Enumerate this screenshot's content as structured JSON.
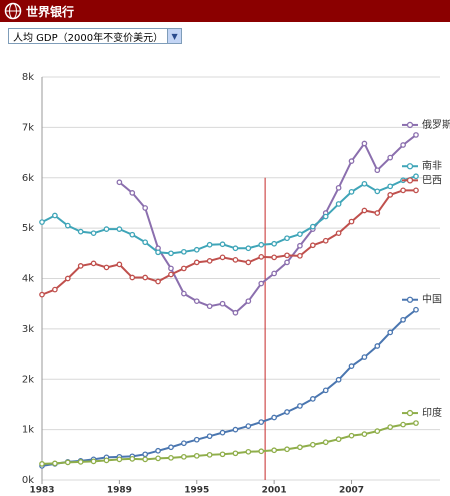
{
  "header": {
    "title": "世界银行"
  },
  "selector": {
    "label": "人均 GDP（2000年不变价美元）"
  },
  "chart_data": {
    "type": "line",
    "x": [
      1983,
      1984,
      1985,
      1986,
      1987,
      1988,
      1989,
      1990,
      1991,
      1992,
      1993,
      1994,
      1995,
      1996,
      1997,
      1998,
      1999,
      2000,
      2001,
      2002,
      2003,
      2004,
      2005,
      2006,
      2007,
      2008,
      2009,
      2010,
      2011,
      2012
    ],
    "xlim": [
      1983,
      2012
    ],
    "xticks": [
      1983,
      1989,
      1995,
      2001,
      2007
    ],
    "ylim": [
      0,
      8000
    ],
    "yticks": [
      {
        "value": 0,
        "label": "0k"
      },
      {
        "value": 1000,
        "label": "1k"
      },
      {
        "value": 2000,
        "label": "2k"
      },
      {
        "value": 3000,
        "label": "3k"
      },
      {
        "value": 4000,
        "label": "4k"
      },
      {
        "value": 5000,
        "label": "5k"
      },
      {
        "value": 6000,
        "label": "6k"
      },
      {
        "value": 7000,
        "label": "7k"
      },
      {
        "value": 8000,
        "label": "8k"
      }
    ],
    "grid": true,
    "reference_x": 2000.3,
    "reference_color": "#c62828",
    "series": [
      {
        "name": "俄罗斯",
        "color": "#8b6fae",
        "values": [
          null,
          null,
          null,
          null,
          null,
          null,
          5910,
          5700,
          5400,
          4600,
          4200,
          3700,
          3550,
          3450,
          3500,
          3320,
          3550,
          3900,
          4100,
          4320,
          4650,
          4980,
          5300,
          5800,
          6330,
          6680,
          6150,
          6400,
          6650,
          6850
        ]
      },
      {
        "name": "南非",
        "color": "#3fa5b8",
        "values": [
          5120,
          5250,
          5050,
          4930,
          4900,
          4980,
          4980,
          4870,
          4720,
          4520,
          4500,
          4530,
          4570,
          4670,
          4680,
          4600,
          4600,
          4670,
          4690,
          4800,
          4880,
          5030,
          5230,
          5480,
          5720,
          5880,
          5730,
          5830,
          5950,
          6030
        ]
      },
      {
        "name": "巴西",
        "color": "#c0504d",
        "values": [
          3680,
          3780,
          4000,
          4250,
          4300,
          4220,
          4280,
          4020,
          4020,
          3940,
          4080,
          4200,
          4320,
          4350,
          4420,
          4370,
          4320,
          4430,
          4420,
          4460,
          4450,
          4660,
          4750,
          4900,
          5130,
          5350,
          5300,
          5660,
          5750,
          5750
        ]
      },
      {
        "name": "中国",
        "color": "#4a76b0",
        "values": [
          280,
          320,
          360,
          380,
          410,
          450,
          460,
          470,
          510,
          580,
          650,
          730,
          800,
          870,
          940,
          1000,
          1070,
          1150,
          1240,
          1350,
          1470,
          1610,
          1780,
          1990,
          2260,
          2440,
          2660,
          2930,
          3180,
          3380
        ]
      },
      {
        "name": "印度",
        "color": "#8fae4a",
        "values": [
          320,
          330,
          350,
          360,
          370,
          390,
          410,
          420,
          410,
          430,
          440,
          460,
          480,
          500,
          510,
          530,
          560,
          570,
          590,
          610,
          650,
          700,
          750,
          810,
          880,
          910,
          970,
          1050,
          1100,
          1130
        ]
      }
    ]
  }
}
